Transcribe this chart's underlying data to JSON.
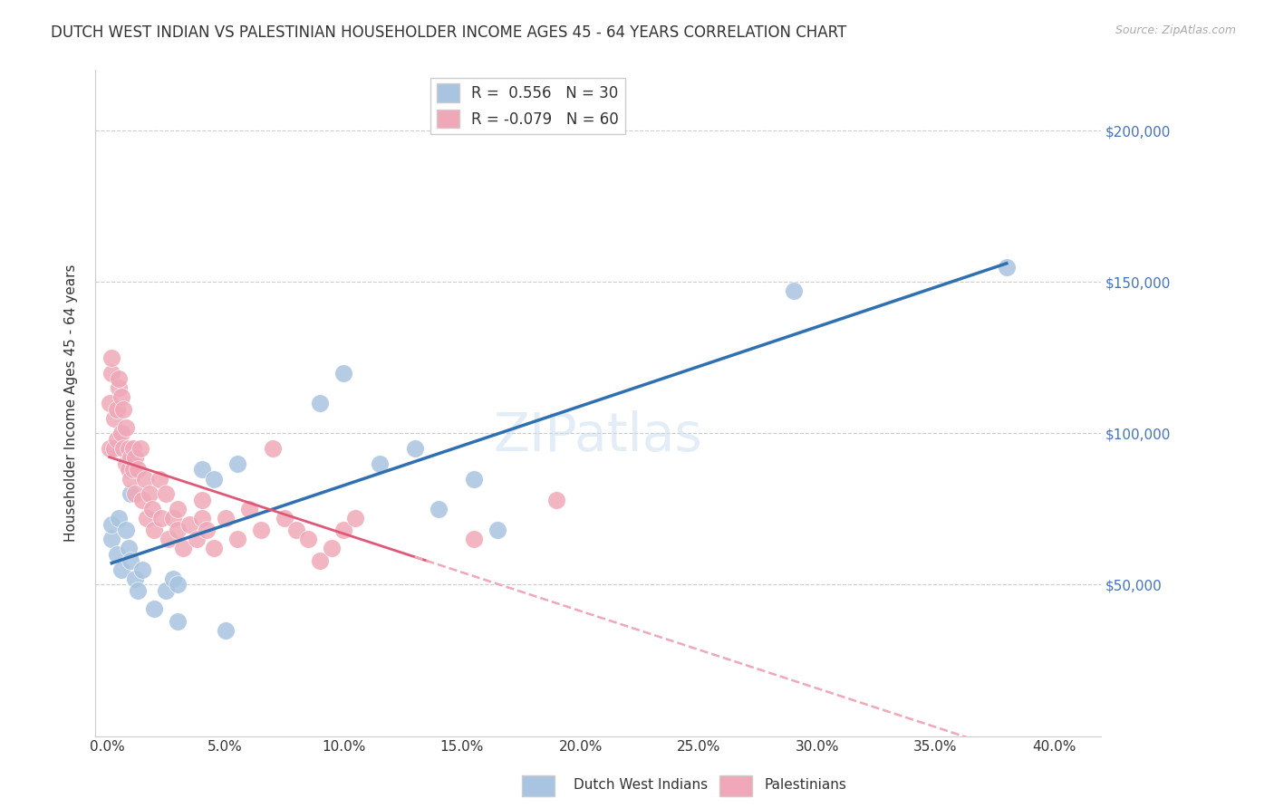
{
  "title": "DUTCH WEST INDIAN VS PALESTINIAN HOUSEHOLDER INCOME AGES 45 - 64 YEARS CORRELATION CHART",
  "source": "Source: ZipAtlas.com",
  "ylabel": "Householder Income Ages 45 - 64 years",
  "xlabel_ticks": [
    "0.0%",
    "5.0%",
    "10.0%",
    "15.0%",
    "20.0%",
    "25.0%",
    "30.0%",
    "35.0%",
    "40.0%"
  ],
  "xlabel_vals": [
    0.0,
    0.05,
    0.1,
    0.15,
    0.2,
    0.25,
    0.3,
    0.35,
    0.4
  ],
  "ytick_labels": [
    "$50,000",
    "$100,000",
    "$150,000",
    "$200,000"
  ],
  "ytick_vals": [
    50000,
    100000,
    150000,
    200000
  ],
  "ylim": [
    0,
    220000
  ],
  "xlim": [
    -0.005,
    0.42
  ],
  "blue_R": 0.556,
  "blue_N": 30,
  "pink_R": -0.079,
  "pink_N": 60,
  "blue_color": "#a8c4e0",
  "pink_color": "#f0a8b8",
  "blue_line_color": "#3070b0",
  "pink_line_color": "#e05878",
  "pink_dashed_color": "#f0a8b8",
  "watermark": "ZIPatlas",
  "blue_x": [
    0.002,
    0.002,
    0.004,
    0.005,
    0.006,
    0.008,
    0.009,
    0.01,
    0.01,
    0.012,
    0.013,
    0.015,
    0.02,
    0.025,
    0.028,
    0.03,
    0.03,
    0.04,
    0.045,
    0.05,
    0.055,
    0.09,
    0.1,
    0.115,
    0.13,
    0.14,
    0.155,
    0.165,
    0.29,
    0.38
  ],
  "blue_y": [
    65000,
    70000,
    60000,
    72000,
    55000,
    68000,
    62000,
    80000,
    58000,
    52000,
    48000,
    55000,
    42000,
    48000,
    52000,
    38000,
    50000,
    88000,
    85000,
    35000,
    90000,
    110000,
    120000,
    90000,
    95000,
    75000,
    85000,
    68000,
    147000,
    155000
  ],
  "pink_x": [
    0.001,
    0.001,
    0.002,
    0.002,
    0.003,
    0.003,
    0.004,
    0.004,
    0.005,
    0.005,
    0.006,
    0.006,
    0.007,
    0.007,
    0.008,
    0.008,
    0.009,
    0.009,
    0.01,
    0.01,
    0.011,
    0.011,
    0.012,
    0.012,
    0.013,
    0.014,
    0.015,
    0.016,
    0.017,
    0.018,
    0.019,
    0.02,
    0.022,
    0.023,
    0.025,
    0.026,
    0.028,
    0.03,
    0.03,
    0.032,
    0.035,
    0.038,
    0.04,
    0.04,
    0.042,
    0.045,
    0.05,
    0.055,
    0.06,
    0.065,
    0.07,
    0.075,
    0.08,
    0.085,
    0.09,
    0.095,
    0.1,
    0.105,
    0.155,
    0.19
  ],
  "pink_y": [
    95000,
    110000,
    120000,
    125000,
    105000,
    95000,
    108000,
    98000,
    115000,
    118000,
    100000,
    112000,
    108000,
    95000,
    90000,
    102000,
    88000,
    95000,
    85000,
    92000,
    88000,
    95000,
    80000,
    92000,
    88000,
    95000,
    78000,
    85000,
    72000,
    80000,
    75000,
    68000,
    85000,
    72000,
    80000,
    65000,
    72000,
    68000,
    75000,
    62000,
    70000,
    65000,
    72000,
    78000,
    68000,
    62000,
    72000,
    65000,
    75000,
    68000,
    95000,
    72000,
    68000,
    65000,
    58000,
    62000,
    68000,
    72000,
    65000,
    78000
  ]
}
